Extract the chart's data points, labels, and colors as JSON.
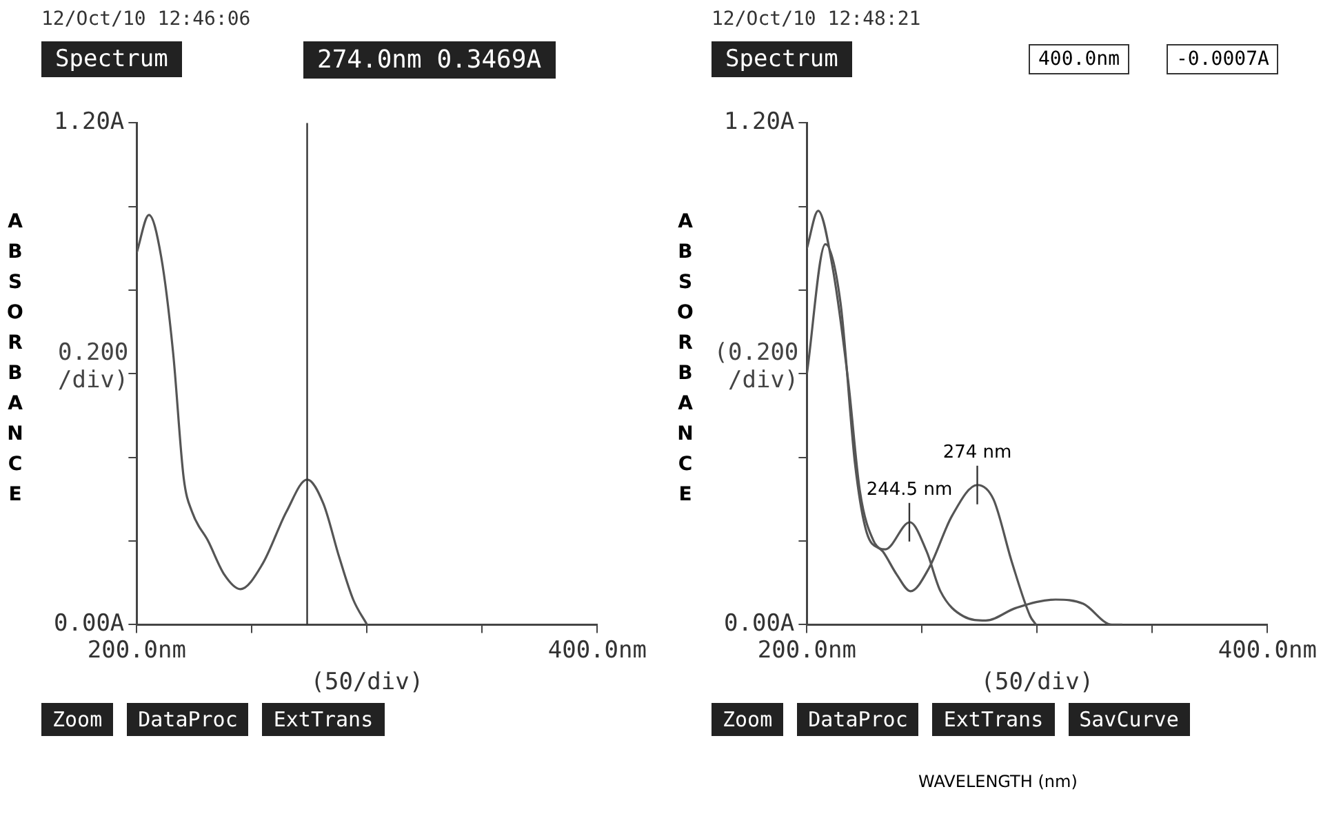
{
  "chart_data": [
    {
      "type": "line",
      "ylabel": "0.200 /div)",
      "xlabel": "(50/div)",
      "xlim": [
        200,
        400
      ],
      "xticks": [
        {
          "value": 200,
          "label": "200.0nm"
        },
        {
          "value": 250,
          "label": null
        },
        {
          "value": 300,
          "label": null
        },
        {
          "value": 350,
          "label": null
        },
        {
          "value": 400,
          "label": "400.0nm"
        }
      ],
      "ylim": [
        0,
        1.2
      ],
      "yticks": [
        {
          "value": 0,
          "label": "0.00A"
        },
        {
          "value": 0.2,
          "label": null
        },
        {
          "value": 0.4,
          "label": null
        },
        {
          "value": 0.6,
          "label": null
        },
        {
          "value": 0.8,
          "label": null
        },
        {
          "value": 1.0,
          "label": null
        },
        {
          "value": 1.2,
          "label": "1.20A"
        }
      ],
      "grid": false,
      "legend": false,
      "marker": "none",
      "line_style": "solid",
      "series": [
        {
          "color": "#555555",
          "x": [
            200,
            205.3,
            210.6,
            215.8,
            220.4,
            224,
            231,
            238,
            245,
            254.6,
            265,
            274,
            281,
            288,
            294,
            300
          ],
          "values": [
            0.89,
            0.98,
            0.88,
            0.65,
            0.35,
            0.27,
            0.2,
            0.12,
            0.085,
            0.145,
            0.27,
            0.347,
            0.29,
            0.16,
            0.06,
            0.0
          ]
        }
      ],
      "ref_lines": [
        {
          "axis": "x",
          "value": 274
        }
      ],
      "annotations": [
        "12/Oct/10 12:46:06",
        "Spectrum",
        "274.0nm  0.3469A",
        "ABSORBANCE",
        "Zoom",
        "DataProc",
        "ExtTrans"
      ]
    },
    {
      "type": "line",
      "ylabel": "(0.200 /div)",
      "xlabel": "(50/div)",
      "xlim": [
        200,
        400
      ],
      "xticks": [
        {
          "value": 200,
          "label": "200.0nm"
        },
        {
          "value": 250,
          "label": null
        },
        {
          "value": 300,
          "label": null
        },
        {
          "value": 350,
          "label": null
        },
        {
          "value": 400,
          "label": "400.0nm"
        }
      ],
      "ylim": [
        0,
        1.2
      ],
      "yticks": [
        {
          "value": 0,
          "label": "0.00A"
        },
        {
          "value": 0.2,
          "label": null
        },
        {
          "value": 0.4,
          "label": null
        },
        {
          "value": 0.6,
          "label": null
        },
        {
          "value": 0.8,
          "label": null
        },
        {
          "value": 1.0,
          "label": null
        },
        {
          "value": 1.2,
          "label": "1.20A"
        }
      ],
      "grid": false,
      "legend": false,
      "marker": "none",
      "line_style": "solid",
      "series": [
        {
          "color": "#555555",
          "x": [
            200,
            204.9,
            211,
            218,
            223,
            229,
            234,
            244.7,
            252,
            258,
            268,
            277.7,
            290.8,
            308,
            320,
            332.5,
            337
          ],
          "values": [
            0.9,
            0.99,
            0.86,
            0.58,
            0.32,
            0.2,
            0.18,
            0.245,
            0.175,
            0.08,
            0.02,
            0.01,
            0.04,
            0.06,
            0.05,
            0.0,
            0.0
          ]
        },
        {
          "color": "#555555",
          "x": [
            200,
            208,
            214.6,
            221,
            226,
            233,
            239,
            245,
            253,
            263,
            274,
            281,
            289,
            297,
            299.5
          ],
          "values": [
            0.6,
            0.91,
            0.77,
            0.38,
            0.22,
            0.175,
            0.12,
            0.08,
            0.135,
            0.26,
            0.334,
            0.3,
            0.15,
            0.02,
            0.0
          ]
        }
      ],
      "annotations": [
        "12/Oct/10 12:48:21",
        "Spectrum",
        "400.0nm",
        "-0.0007A",
        "ABSORBANCE",
        "Zoom",
        "DataProc",
        "ExtTrans",
        "SavCurve",
        "WAVELENGTH (nm)",
        {
          "text": "244.5 nm",
          "x": 244.5,
          "y": 0.245
        },
        {
          "text": "274 nm",
          "x": 274,
          "y": 0.334
        }
      ]
    }
  ]
}
